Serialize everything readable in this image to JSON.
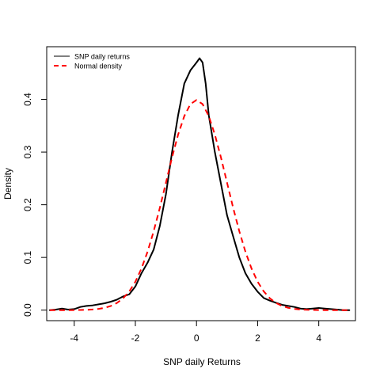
{
  "chart_data": {
    "type": "line",
    "title": "",
    "xlabel": "SNP daily Returns",
    "ylabel": "Density",
    "xlim": [
      -4.9,
      5.2
    ],
    "ylim": [
      -0.02,
      0.5
    ],
    "x_ticks": [
      -4,
      -2,
      0,
      2,
      4
    ],
    "x_tick_labels": [
      "-4",
      "-2",
      "0",
      "2",
      "4"
    ],
    "y_ticks": [
      0.0,
      0.1,
      0.2,
      0.3,
      0.4
    ],
    "y_tick_labels": [
      "0.0",
      "0.1",
      "0.2",
      "0.3",
      "0.4"
    ],
    "grid": false,
    "legend_position": "top-left",
    "series": [
      {
        "name": "SNP daily returns",
        "color": "#000000",
        "style": "solid",
        "x": [
          -4.8,
          -4.6,
          -4.4,
          -4.2,
          -4.0,
          -3.8,
          -3.6,
          -3.4,
          -3.2,
          -3.0,
          -2.8,
          -2.6,
          -2.4,
          -2.2,
          -2.0,
          -1.8,
          -1.6,
          -1.4,
          -1.2,
          -1.0,
          -0.8,
          -0.6,
          -0.4,
          -0.2,
          0.0,
          0.1,
          0.2,
          0.3,
          0.4,
          0.6,
          0.8,
          1.0,
          1.2,
          1.4,
          1.6,
          1.8,
          2.0,
          2.2,
          2.4,
          2.6,
          2.8,
          3.0,
          3.2,
          3.4,
          3.6,
          3.8,
          4.0,
          4.2,
          4.4,
          4.6,
          4.8,
          5.0
        ],
        "y": [
          0.0,
          0.001,
          0.003,
          0.001,
          0.002,
          0.006,
          0.008,
          0.009,
          0.011,
          0.013,
          0.016,
          0.02,
          0.026,
          0.03,
          0.045,
          0.07,
          0.09,
          0.115,
          0.16,
          0.22,
          0.3,
          0.37,
          0.43,
          0.455,
          0.47,
          0.478,
          0.47,
          0.43,
          0.37,
          0.3,
          0.24,
          0.18,
          0.14,
          0.1,
          0.07,
          0.05,
          0.035,
          0.023,
          0.018,
          0.014,
          0.01,
          0.008,
          0.006,
          0.003,
          0.002,
          0.003,
          0.004,
          0.003,
          0.002,
          0.001,
          0.0,
          0.0
        ]
      },
      {
        "name": "Normal density",
        "color": "#ff0000",
        "style": "dashed",
        "x": [
          -4.8,
          -4.6,
          -4.4,
          -4.2,
          -4.0,
          -3.8,
          -3.6,
          -3.4,
          -3.2,
          -3.0,
          -2.8,
          -2.6,
          -2.4,
          -2.2,
          -2.0,
          -1.8,
          -1.6,
          -1.4,
          -1.2,
          -1.0,
          -0.8,
          -0.6,
          -0.4,
          -0.2,
          0.0,
          0.2,
          0.4,
          0.6,
          0.8,
          1.0,
          1.2,
          1.4,
          1.6,
          1.8,
          2.0,
          2.2,
          2.4,
          2.6,
          2.8,
          3.0,
          3.2,
          3.4,
          3.6,
          3.8,
          4.0,
          4.2,
          4.4,
          4.6,
          4.8,
          5.0
        ],
        "y": [
          0.0,
          0.0,
          0.0,
          0.0,
          0.0001,
          0.0003,
          0.0006,
          0.0012,
          0.0024,
          0.0044,
          0.0079,
          0.0136,
          0.0224,
          0.0355,
          0.054,
          0.079,
          0.1109,
          0.1497,
          0.1942,
          0.242,
          0.2897,
          0.3332,
          0.3683,
          0.391,
          0.3989,
          0.391,
          0.3683,
          0.3332,
          0.2897,
          0.242,
          0.1942,
          0.1497,
          0.1109,
          0.079,
          0.054,
          0.0355,
          0.0224,
          0.0136,
          0.0079,
          0.0044,
          0.0024,
          0.0012,
          0.0006,
          0.0003,
          0.0001,
          0.0,
          0.0,
          0.0,
          0.0,
          0.0
        ]
      }
    ]
  }
}
